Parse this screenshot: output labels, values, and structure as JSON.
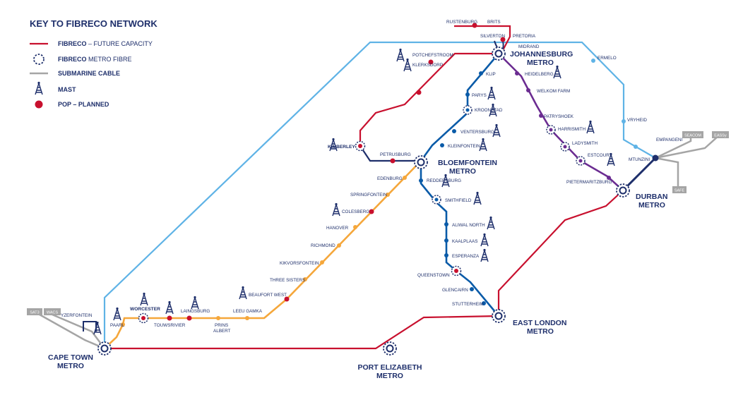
{
  "key": {
    "title": "KEY TO FIBRECO NETWORK",
    "future_bold": "FIBRECO",
    "future_rest": " – FUTURE CAPACITY",
    "metro_bold": "FIBRECO",
    "metro_rest": " METRO FIBRE",
    "submarine": "SUBMARINE CABLE",
    "mast": "MAST",
    "pop": "POP – PLANNED"
  },
  "colors": {
    "red": "#c8102e",
    "navy": "#1e2f6b",
    "blue": "#0a5ba8",
    "light_blue": "#5fb3e6",
    "orange": "#f5a73b",
    "purple": "#6b2c91",
    "grey": "#a5a5a5"
  },
  "metros": {
    "johannesburg": [
      "JOHANNESBURG",
      "METRO"
    ],
    "bloemfontein": [
      "BLOEMFONTEIN",
      "METRO"
    ],
    "durban": [
      "DURBAN",
      "METRO"
    ],
    "east_london": [
      "EAST LONDON",
      "METRO"
    ],
    "port_elizabeth": [
      "PORT ELIZABETH",
      "METRO"
    ],
    "cape_town": [
      "CAPE TOWN",
      "METRO"
    ]
  },
  "stations": {
    "rustenburg": "RUSTENBURG",
    "brits": "BRITS",
    "silverton": "SILVERTON",
    "pretoria": "PRETORIA",
    "midrand": "MIDRAND",
    "potchefstroom": "POTCHEFSTROOM",
    "klerksdorp": "KLERKSDORP",
    "klip": "KLIP",
    "parys": "PARYS",
    "kroonstad": "KROONSTAD",
    "ventersburg": "VENTERSBURG",
    "kleinfontein": "KLEINFONTEIN",
    "kimberley": "KIMBERLEY",
    "petrusburg": "PETRUSBURG",
    "edenburg": "EDENBURG",
    "reddersburg": "REDDERSBURG",
    "springfontein": "SPRINGFONTEIN",
    "smithfield": "SMITHFIELD",
    "colesberg": "COLESBERG",
    "hanover": "HANOVER",
    "aliwal_north": "ALIWAL NORTH",
    "kaalplaas": "KAALPLAAS",
    "richmond": "RICHMOND",
    "esperanza": "ESPERANZA",
    "kikvorsfontein": "KIKVORSFONTEIN",
    "queenstown": "QUEENSTOWN",
    "three_sisters": "THREE SISTERS",
    "glencairn": "GLENCAIRN",
    "beaufort_west": "BEAUFORT WEST",
    "stutterheim": "STUTTERHEIM",
    "leeu_gamka": "LEEU GAMKA",
    "prins_albert": [
      "PRINS",
      "ALBERT"
    ],
    "laingsburg": "LAINGSBURG",
    "touwsrivier": "TOUWSRIVIER",
    "worcester": "WORCESTER",
    "paarl": "PAARL",
    "yzerfontein": "YZERFONTEIN",
    "heidelberg": "HEIDELBERG",
    "welkom_farm": "WELKOM FARM",
    "ermelo": "ERMELO",
    "patryshoek": "PATRYSHOEK",
    "harrismith": "HARRISMITH",
    "ladysmith": "LADYSMITH",
    "estcourt": "ESTCOURT",
    "pietermaritzburg": "PIETERMARITZBURG",
    "vryheid": "VRYHEID",
    "empangeni": "EMPANGENI",
    "mtunzini": "MTUNZINI"
  },
  "cables": {
    "sat3": "SAT3",
    "wacs": "WACS",
    "seacom": "SEACOM",
    "eassy": "EASSy",
    "safe": "SAFE"
  },
  "icons": {
    "mast": "mast-icon",
    "pop": "pop-dot-icon",
    "metro": "metro-ring-icon"
  }
}
